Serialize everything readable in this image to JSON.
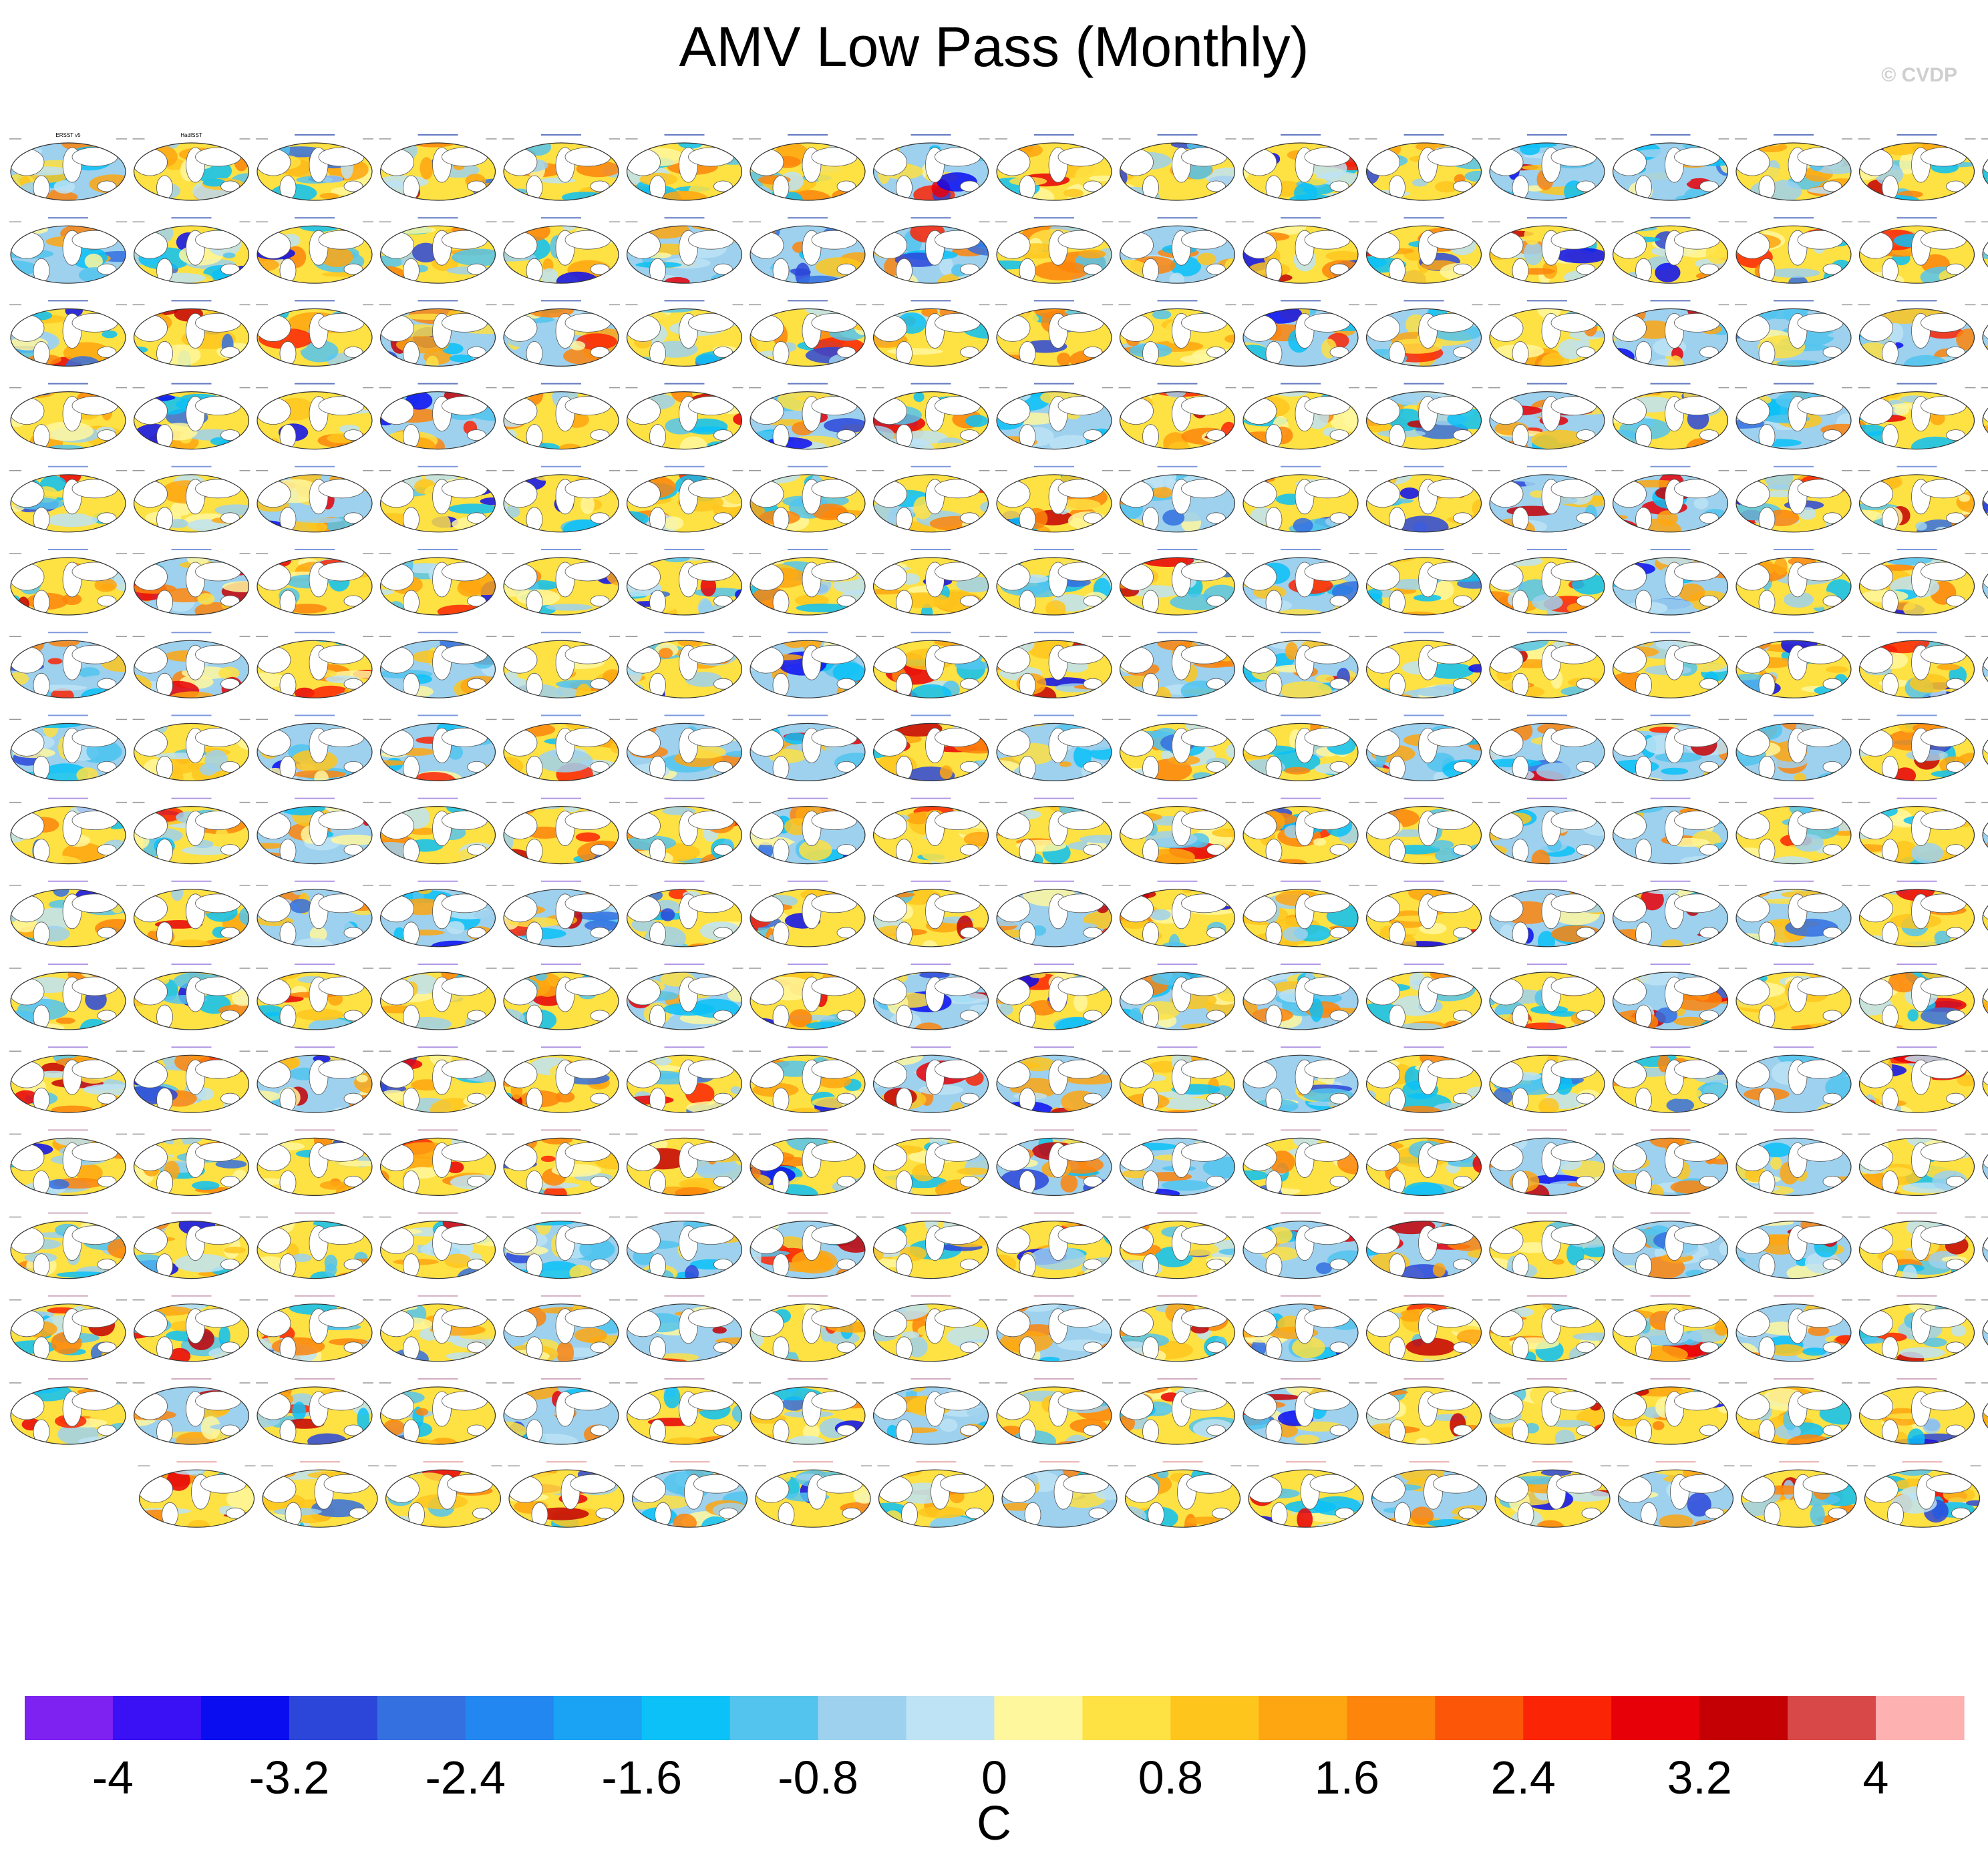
{
  "title": "AMV Low Pass (Monthly)",
  "watermark": "© CVDP",
  "chart_data": {
    "type": "heatmap",
    "description_of_layout": "small multiples",
    "panel_rows": [
      17,
      17,
      17,
      17,
      17,
      17,
      17,
      17,
      17,
      17,
      17,
      17,
      17,
      17,
      17,
      17,
      15
    ],
    "first_panels": [
      {
        "title": "ERSST v5"
      },
      {
        "title": "HadISST"
      }
    ],
    "colorbar": {
      "label": "C",
      "range": [
        -4.4,
        4.4
      ],
      "step": 0.4,
      "tick_values": [
        -4,
        -3.2,
        -2.4,
        -1.6,
        -0.8,
        0,
        0.8,
        1.6,
        2.4,
        3.2,
        4
      ],
      "tick_labels": [
        "-4",
        "-3.2",
        "-2.4",
        "-1.6",
        "-0.8",
        "0",
        "0.8",
        "1.6",
        "2.4",
        "3.2",
        "4"
      ],
      "colors": [
        "#7d22f0",
        "#3a10f5",
        "#0a0df0",
        "#2b46d9",
        "#3470e0",
        "#2387f2",
        "#1aa2f5",
        "#0bc1f7",
        "#52c4ee",
        "#9dd1ee",
        "#bde3f5",
        "#fff79e",
        "#fee143",
        "#fec51d",
        "#fea611",
        "#fd850c",
        "#fc5608",
        "#fb2505",
        "#e80008",
        "#c40005",
        "#d94848",
        "#fdb1b1"
      ]
    }
  }
}
